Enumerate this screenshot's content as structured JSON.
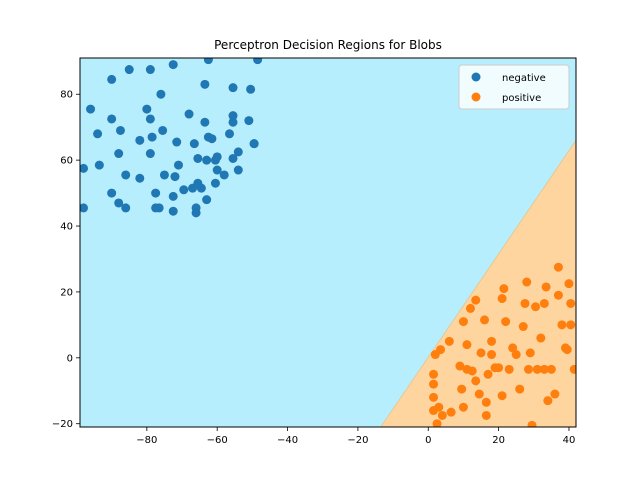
{
  "chart_data": {
    "type": "scatter",
    "title": "Perceptron Decision Regions for Blobs",
    "xlabel": "",
    "ylabel": "",
    "xlim": [
      -99,
      42
    ],
    "ylim": [
      -21,
      91
    ],
    "x_ticks": [
      -80,
      -60,
      -40,
      -20,
      0,
      20,
      40
    ],
    "y_ticks": [
      -20,
      0,
      20,
      40,
      60,
      80
    ],
    "x_tick_labels": [
      "−80",
      "−60",
      "−40",
      "−20",
      "0",
      "20",
      "40"
    ],
    "y_tick_labels": [
      "−20",
      "0",
      "20",
      "40",
      "60",
      "80"
    ],
    "grid": false,
    "legend": "top-right",
    "decision_boundary": {
      "points": [
        [
          -13.5,
          -21
        ],
        [
          42,
          66
        ]
      ]
    },
    "regions": [
      {
        "label": "negative",
        "color": "#b7eefd"
      },
      {
        "label": "positive",
        "color": "#fed59e"
      }
    ],
    "series": [
      {
        "name": "negative",
        "color": "#1f77b4",
        "points": [
          [
            -98,
            57.5
          ],
          [
            -98,
            45.5
          ],
          [
            -96,
            75.5
          ],
          [
            -94,
            68
          ],
          [
            -93.5,
            58.5
          ],
          [
            -90,
            84.5
          ],
          [
            -90,
            72.5
          ],
          [
            -90,
            50
          ],
          [
            -88,
            62
          ],
          [
            -87.5,
            69
          ],
          [
            -88,
            47
          ],
          [
            -86,
            45.5
          ],
          [
            -86,
            55.5
          ],
          [
            -85,
            87.5
          ],
          [
            -82,
            66
          ],
          [
            -82,
            54.5
          ],
          [
            -80,
            75.5
          ],
          [
            -79,
            87.5
          ],
          [
            -79,
            72.5
          ],
          [
            -79,
            62
          ],
          [
            -78.5,
            67
          ],
          [
            -77.5,
            50
          ],
          [
            -77.5,
            45.5
          ],
          [
            -76.5,
            45.5
          ],
          [
            -76,
            80
          ],
          [
            -75.5,
            69
          ],
          [
            -75,
            55.5
          ],
          [
            -72.5,
            89
          ],
          [
            -72.5,
            49
          ],
          [
            -72.5,
            44.5
          ],
          [
            -72,
            55
          ],
          [
            -71.5,
            65.5
          ],
          [
            -71,
            58.5
          ],
          [
            -69.5,
            51
          ],
          [
            -68,
            74
          ],
          [
            -67,
            51.5
          ],
          [
            -66.5,
            65
          ],
          [
            -66,
            45.5
          ],
          [
            -66,
            44
          ],
          [
            -65.5,
            53
          ],
          [
            -65.5,
            60.5
          ],
          [
            -64.5,
            51.5
          ],
          [
            -63.5,
            83
          ],
          [
            -63.5,
            71.5
          ],
          [
            -63,
            60
          ],
          [
            -63,
            48
          ],
          [
            -62.5,
            90.5
          ],
          [
            -62.5,
            67
          ],
          [
            -61.5,
            66.5
          ],
          [
            -60.5,
            60
          ],
          [
            -60.5,
            53
          ],
          [
            -60,
            61
          ],
          [
            -60,
            57
          ],
          [
            -58,
            55.5
          ],
          [
            -56.5,
            68
          ],
          [
            -55.5,
            82
          ],
          [
            -55.5,
            73.5
          ],
          [
            -55.5,
            71.5
          ],
          [
            -55.5,
            60.5
          ],
          [
            -54,
            62.5
          ],
          [
            -54,
            57
          ],
          [
            -51,
            72
          ],
          [
            -50.5,
            81.5
          ],
          [
            -49.5,
            65
          ],
          [
            -49.5,
            65
          ],
          [
            -48.5,
            90.5
          ]
        ]
      },
      {
        "name": "positive",
        "color": "#ff7f0e",
        "points": [
          [
            1.5,
            -5
          ],
          [
            1.5,
            -8
          ],
          [
            1.5,
            -12
          ],
          [
            1.5,
            -16
          ],
          [
            2,
            1
          ],
          [
            2.5,
            -20
          ],
          [
            3,
            -15
          ],
          [
            3.5,
            2.5
          ],
          [
            4,
            -17.5
          ],
          [
            6,
            5
          ],
          [
            6.5,
            -16.5
          ],
          [
            9,
            -2.5
          ],
          [
            9.5,
            -9.5
          ],
          [
            10,
            11
          ],
          [
            10,
            -15
          ],
          [
            11,
            4
          ],
          [
            11,
            -3.5
          ],
          [
            12,
            15
          ],
          [
            12.5,
            -4
          ],
          [
            13.5,
            -7
          ],
          [
            13.5,
            17.5
          ],
          [
            14.5,
            -11
          ],
          [
            15,
            1.5
          ],
          [
            16,
            11.5
          ],
          [
            16.5,
            -13.5
          ],
          [
            16.5,
            -17.5
          ],
          [
            17,
            -5
          ],
          [
            18,
            5
          ],
          [
            18,
            1
          ],
          [
            19,
            -3
          ],
          [
            20,
            -3
          ],
          [
            21.5,
            21
          ],
          [
            21,
            18
          ],
          [
            21,
            -11.5
          ],
          [
            22,
            11
          ],
          [
            23,
            -3.5
          ],
          [
            24,
            3
          ],
          [
            25,
            1
          ],
          [
            26,
            -9.5
          ],
          [
            27,
            9.5
          ],
          [
            27.5,
            16.5
          ],
          [
            28,
            23
          ],
          [
            28.5,
            -3.5
          ],
          [
            29,
            1.5
          ],
          [
            29.5,
            -20.5
          ],
          [
            30.5,
            15.5
          ],
          [
            31,
            -3.5
          ],
          [
            32,
            6
          ],
          [
            33,
            -3.5
          ],
          [
            33,
            16.5
          ],
          [
            33.5,
            21.5
          ],
          [
            34,
            -13
          ],
          [
            35,
            -3.5
          ],
          [
            36,
            -11
          ],
          [
            37,
            27.5
          ],
          [
            37,
            19
          ],
          [
            38,
            10
          ],
          [
            39,
            3
          ],
          [
            39.5,
            2.5
          ],
          [
            40,
            22.5
          ],
          [
            40.5,
            10
          ],
          [
            40.5,
            16.5
          ],
          [
            41.5,
            -3.5
          ]
        ]
      }
    ]
  }
}
